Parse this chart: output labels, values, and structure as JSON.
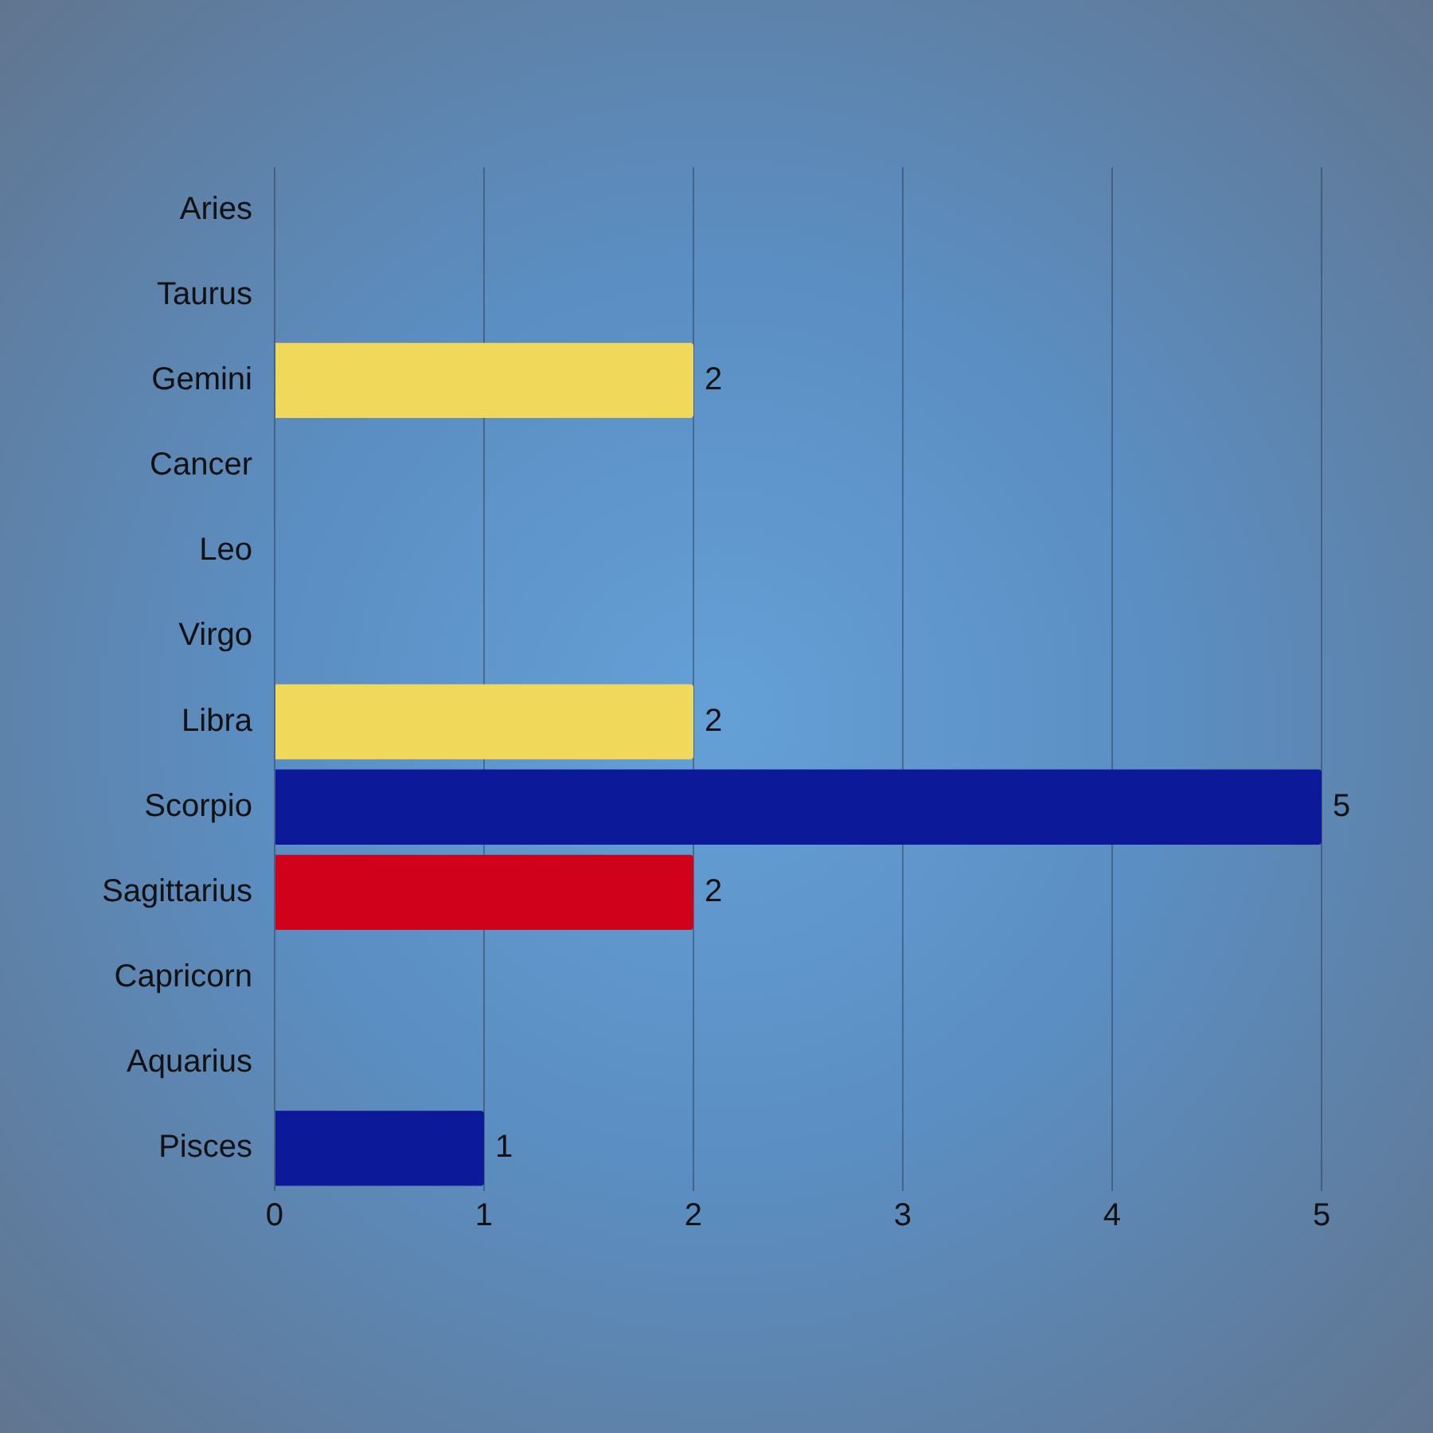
{
  "chart_data": {
    "type": "bar",
    "orientation": "horizontal",
    "categories": [
      "Aries",
      "Taurus",
      "Gemini",
      "Cancer",
      "Leo",
      "Virgo",
      "Libra",
      "Scorpio",
      "Sagittarius",
      "Capricorn",
      "Aquarius",
      "Pisces"
    ],
    "values": [
      0,
      0,
      2,
      0,
      0,
      0,
      2,
      5,
      2,
      0,
      0,
      1
    ],
    "colors": [
      "#0c1a9a",
      "#0c1a9a",
      "#f0d95a",
      "#0c1a9a",
      "#0c1a9a",
      "#0c1a9a",
      "#f0d95a",
      "#0c1a9a",
      "#d0021b",
      "#0c1a9a",
      "#0c1a9a",
      "#0c1a9a"
    ],
    "value_labels": [
      null,
      null,
      "2",
      null,
      null,
      null,
      "2",
      "5",
      "2",
      null,
      null,
      "1"
    ],
    "xlim": [
      0,
      5
    ],
    "xticks": [
      0,
      1,
      2,
      3,
      4,
      5
    ],
    "grid": "x",
    "legend": false
  }
}
